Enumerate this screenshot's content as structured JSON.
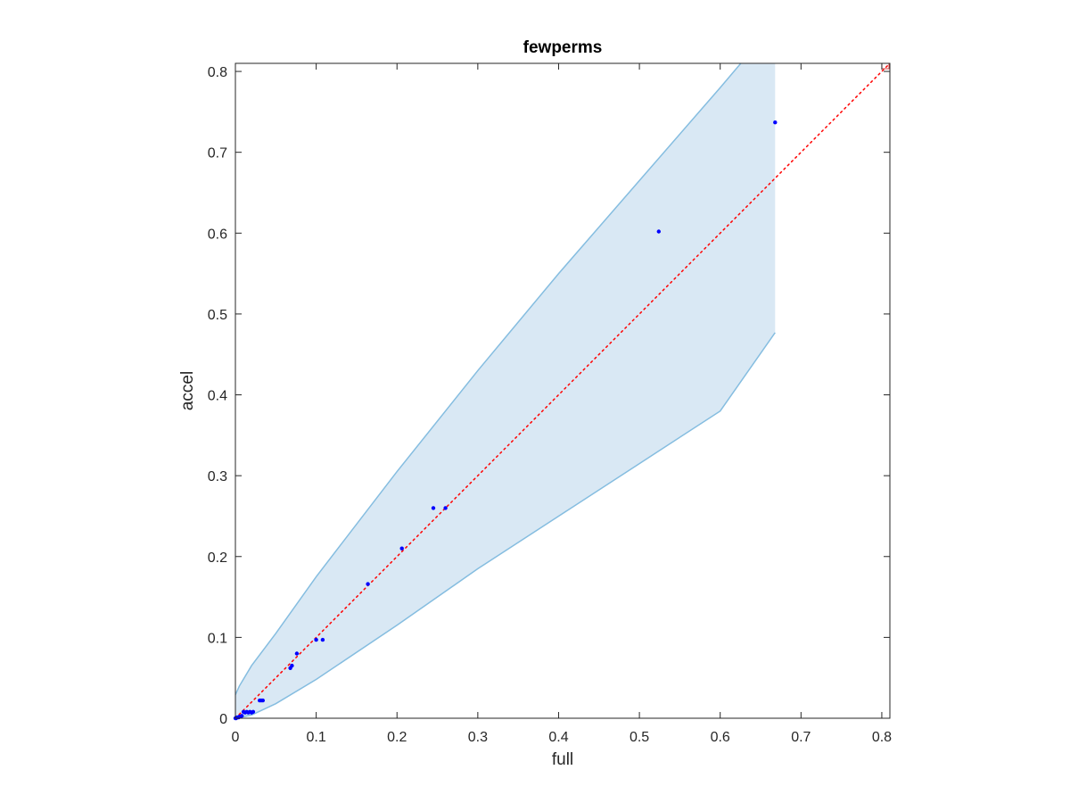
{
  "chart_data": {
    "type": "scatter",
    "title": "fewperms",
    "xlabel": "full",
    "ylabel": "accel",
    "xlim": [
      0,
      0.81
    ],
    "ylim": [
      0,
      0.81
    ],
    "xticks": [
      "0",
      "0.1",
      "0.2",
      "0.3",
      "0.4",
      "0.5",
      "0.6",
      "0.7",
      "0.8"
    ],
    "yticks": [
      "0",
      "0.1",
      "0.2",
      "0.3",
      "0.4",
      "0.5",
      "0.6",
      "0.7",
      "0.8"
    ],
    "grid": false,
    "points": {
      "x": [
        0.0,
        0.001,
        0.002,
        0.004,
        0.005,
        0.006,
        0.008,
        0.01,
        0.012,
        0.014,
        0.016,
        0.018,
        0.02,
        0.022,
        0.03,
        0.032,
        0.034,
        0.068,
        0.07,
        0.076,
        0.1,
        0.108,
        0.164,
        0.206,
        0.245,
        0.26,
        0.524,
        0.668
      ],
      "y": [
        0.0,
        0.0,
        0.001,
        0.001,
        0.002,
        0.002,
        0.003,
        0.008,
        0.007,
        0.008,
        0.007,
        0.008,
        0.007,
        0.008,
        0.022,
        0.022,
        0.022,
        0.062,
        0.065,
        0.08,
        0.097,
        0.097,
        0.166,
        0.21,
        0.26,
        0.26,
        0.602,
        0.737
      ],
      "color": "#0000ff"
    },
    "band": {
      "color_fill": "#d9e8f4",
      "color_edge": "#85bde0",
      "x": [
        0.0,
        0.005,
        0.02,
        0.05,
        0.1,
        0.2,
        0.3,
        0.4,
        0.5,
        0.6,
        0.668
      ],
      "upper": [
        0.029,
        0.04,
        0.065,
        0.105,
        0.175,
        0.305,
        0.43,
        0.55,
        0.665,
        0.78,
        0.86
      ],
      "lower": [
        0.0,
        0.001,
        0.004,
        0.018,
        0.048,
        0.115,
        0.185,
        0.25,
        0.315,
        0.38,
        0.477
      ]
    },
    "reference_line": {
      "style": "dotted",
      "color": "#ff0000",
      "x": [
        0,
        0.81
      ],
      "y": [
        0,
        0.81
      ]
    }
  }
}
